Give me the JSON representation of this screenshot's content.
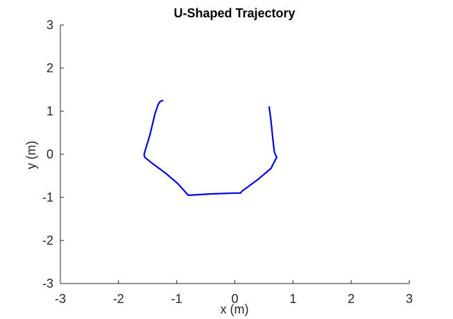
{
  "chart_data": {
    "type": "line",
    "title": "U-Shaped Trajectory",
    "xlabel": "x (m)",
    "ylabel": "y (m)",
    "xlim": [
      -3,
      3
    ],
    "ylim": [
      -3,
      3
    ],
    "xticks": [
      "-3",
      "-2",
      "-1",
      "0",
      "1",
      "2",
      "3"
    ],
    "yticks": [
      "-3",
      "-2",
      "-1",
      "0",
      "1",
      "2",
      "3"
    ],
    "grid": false,
    "legend": "none",
    "series": [
      {
        "color": "#0000e6",
        "x": [
          -1.24,
          -1.29,
          -1.32,
          -1.37,
          -1.46,
          -1.56,
          -1.55,
          -1.4,
          -1.18,
          -0.98,
          -0.8,
          -0.78,
          -0.4,
          0.0,
          0.1,
          0.12,
          0.4,
          0.62,
          0.72,
          0.68,
          0.65,
          0.62,
          0.59
        ],
        "y": [
          1.25,
          1.22,
          1.15,
          0.95,
          0.45,
          0.0,
          -0.07,
          -0.23,
          -0.45,
          -0.68,
          -0.95,
          -0.95,
          -0.92,
          -0.9,
          -0.9,
          -0.86,
          -0.58,
          -0.33,
          -0.07,
          0.05,
          0.4,
          0.8,
          1.1
        ]
      }
    ]
  }
}
